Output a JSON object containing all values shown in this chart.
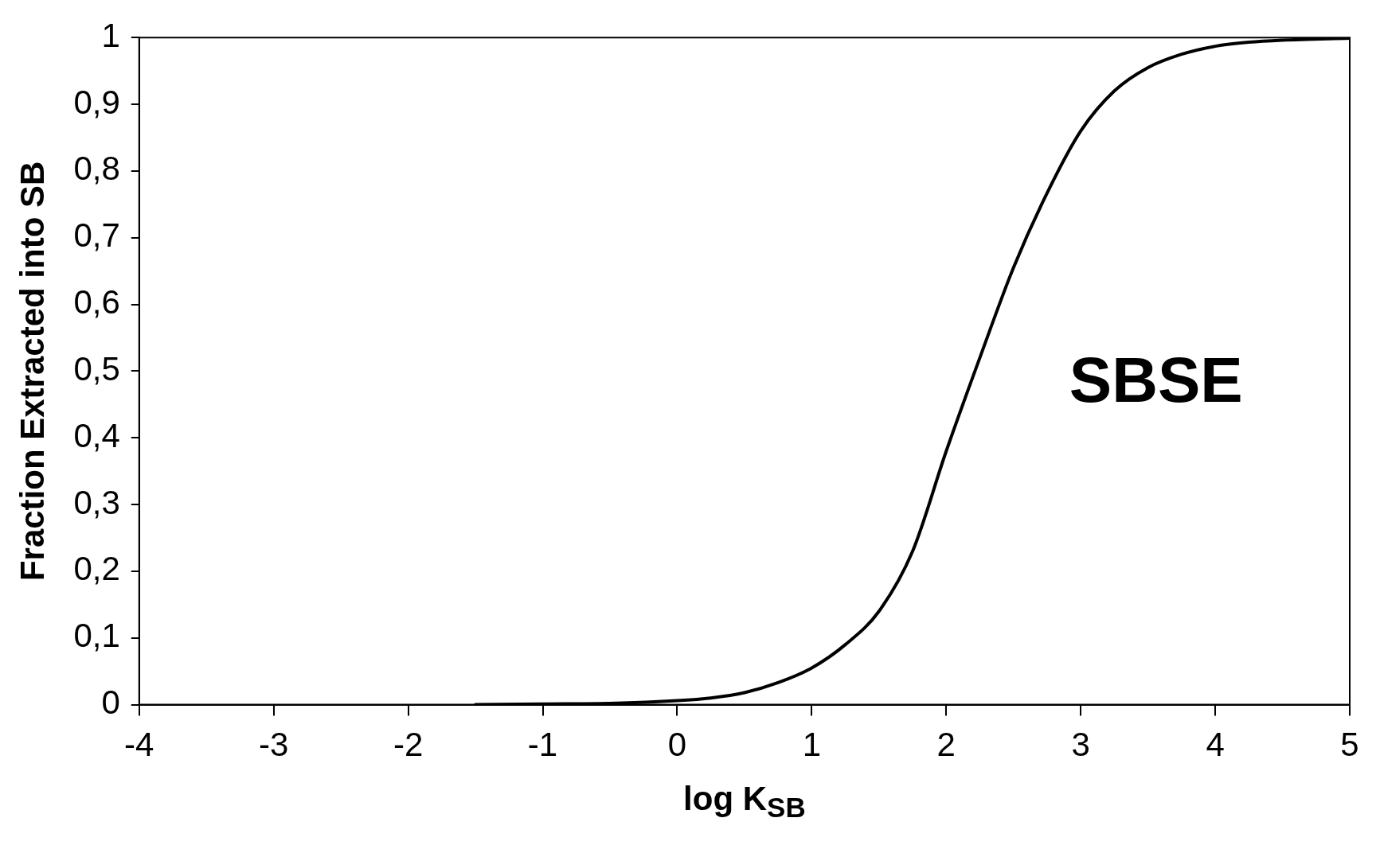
{
  "chart_data": {
    "type": "line",
    "xlabel": "log K$_{SB}$",
    "ylabel": "Fraction Extracted into SB",
    "annotations": [
      "SBSE"
    ],
    "x": [
      -1.5,
      -1,
      -0.5,
      0,
      0.25,
      0.5,
      0.75,
      1,
      1.25,
      1.5,
      1.75,
      2,
      2.25,
      2.5,
      2.75,
      3,
      3.25,
      3.5,
      3.75,
      4,
      4.25,
      4.5,
      5
    ],
    "series": [
      {
        "color": "#000000",
        "values": [
          0,
          0.001,
          0.002,
          0.006,
          0.01,
          0.018,
          0.033,
          0.055,
          0.09,
          0.14,
          0.23,
          0.38,
          0.52,
          0.655,
          0.767,
          0.86,
          0.92,
          0.955,
          0.975,
          0.987,
          0.993,
          0.996,
          0.999
        ]
      }
    ],
    "xlim": [
      -4,
      5
    ],
    "xticks": [
      -4,
      -3,
      -2,
      -1,
      0,
      1,
      2,
      3,
      4,
      5
    ],
    "ylim": [
      0,
      1
    ],
    "yticks": [
      0,
      {
        "value": 0.1,
        "label": "0,1"
      },
      {
        "value": 0.2,
        "label": "0,2"
      },
      {
        "value": 0.3,
        "label": "0,3"
      },
      {
        "value": 0.4,
        "label": "0,4"
      },
      {
        "value": 0.5,
        "label": "0,5"
      },
      {
        "value": 0.6,
        "label": "0,6"
      },
      {
        "value": 0.7,
        "label": "0,7"
      },
      {
        "value": 0.8,
        "label": "0,8"
      },
      {
        "value": 0.9,
        "label": "0,9"
      },
      1
    ],
    "grid": false,
    "legend": false,
    "marker": "none",
    "line_style": "solid"
  }
}
